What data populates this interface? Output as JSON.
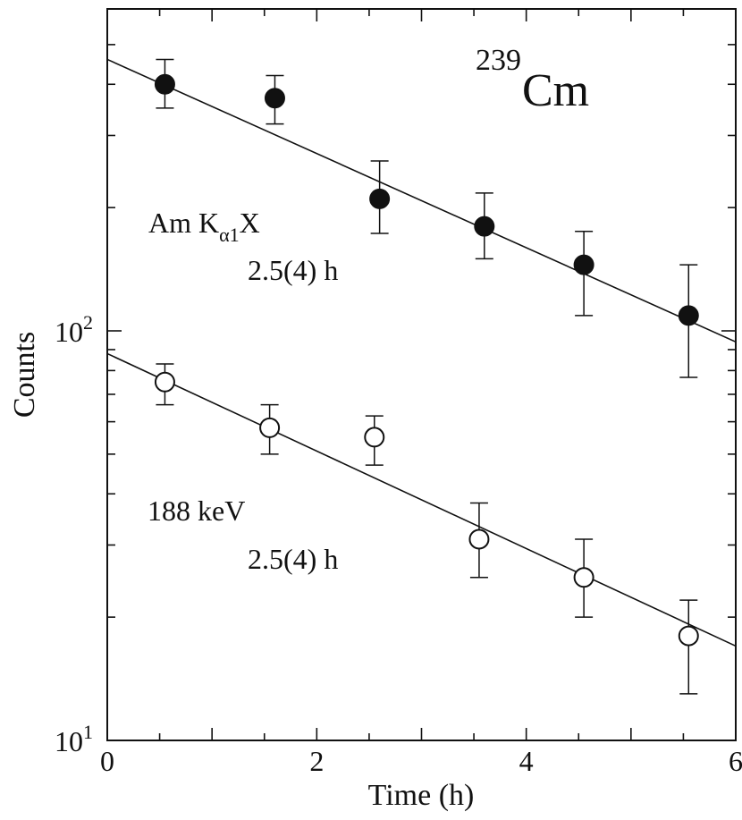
{
  "chart_data": {
    "type": "scatter",
    "title": "",
    "xlabel": "Time (h)",
    "ylabel": "Counts",
    "xlim": [
      0,
      6
    ],
    "ylim": [
      10,
      500
    ],
    "yscale": "log",
    "x_ticks": [
      "0",
      "2",
      "4",
      "6"
    ],
    "y_ticks": [
      {
        "base": "10",
        "exp": "1"
      },
      {
        "base": "10",
        "exp": "2"
      }
    ],
    "nuclide": {
      "mass": "239",
      "symbol": "Cm"
    },
    "series": [
      {
        "name": "Am Kα1X",
        "label_main": "Am K",
        "label_sub": "α1",
        "label_end": "X",
        "half_life": "2.5(4) h",
        "marker": "filled-circle",
        "x": [
          0.55,
          1.6,
          2.6,
          3.6,
          4.55,
          5.55
        ],
        "y": [
          400,
          370,
          210,
          180,
          145,
          109
        ],
        "err_low": [
          350,
          320,
          173,
          150,
          109,
          77
        ],
        "err_high": [
          460,
          420,
          260,
          217,
          175,
          145
        ],
        "fit": {
          "x": [
            0,
            6
          ],
          "y": [
            460,
            94
          ]
        }
      },
      {
        "name": "188 keV",
        "label_main": "188 keV",
        "half_life": "2.5(4) h",
        "marker": "open-circle",
        "x": [
          0.55,
          1.55,
          2.55,
          3.55,
          4.55,
          5.55
        ],
        "y": [
          75,
          58,
          55,
          31,
          25,
          18
        ],
        "err_low": [
          66,
          50,
          47,
          25,
          20,
          13
        ],
        "err_high": [
          83,
          66,
          62,
          38,
          31,
          22
        ],
        "fit": {
          "x": [
            0,
            6
          ],
          "y": [
            88,
            17
          ]
        }
      }
    ]
  }
}
